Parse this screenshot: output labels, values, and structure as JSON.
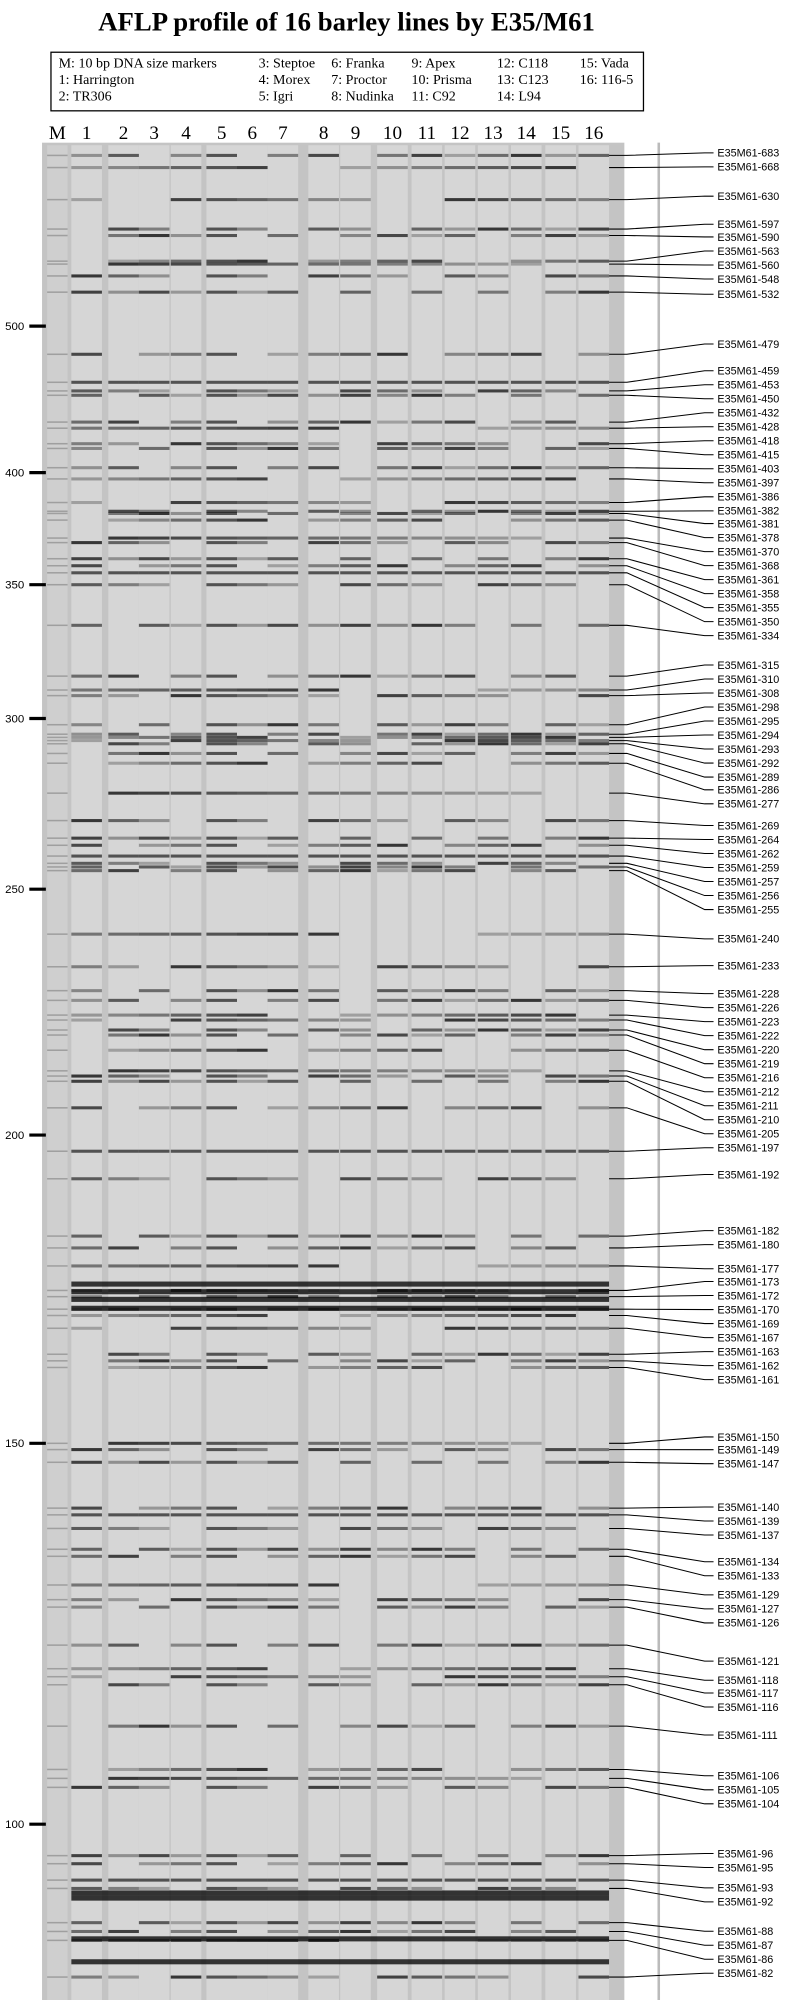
{
  "title": "AFLP profile of 16 barley lines by E35/M61",
  "legend": [
    [
      "M: 10 bp DNA size markers",
      "1: Harrington",
      "2: TR306"
    ],
    [
      "3: Steptoe",
      "4: Morex",
      "5: Igri"
    ],
    [
      "6: Franka",
      "7: Proctor",
      "8: Nudinka"
    ],
    [
      "9: Apex",
      "10: Prisma",
      "11: C92"
    ],
    [
      "12: C118",
      "13: C123",
      "14: L94"
    ],
    [
      "15: Vada",
      "16: 116-5"
    ]
  ],
  "lanes": [
    "M",
    "1",
    "2",
    "3",
    "4",
    "5",
    "6",
    "7",
    "8",
    "9",
    "10",
    "11",
    "12",
    "13",
    "14",
    "15",
    "16"
  ],
  "size_markers": [
    "500",
    "400",
    "350",
    "300",
    "250",
    "200",
    "150",
    "100"
  ],
  "band_labels": [
    "E35M61-683",
    "E35M61-668",
    "E35M61-630",
    "E35M61-597",
    "E35M61-590",
    "E35M61-563",
    "E35M61-560",
    "E35M61-548",
    "E35M61-532",
    "E35M61-479",
    "E35M61-459",
    "E35M61-453",
    "E35M61-450",
    "E35M61-432",
    "E35M61-428",
    "E35M61-418",
    "E35M61-415",
    "E35M61-403",
    "E35M61-397",
    "E35M61-386",
    "E35M61-382",
    "E35M61-381",
    "E35M61-378",
    "E35M61-370",
    "E35M61-368",
    "E35M61-361",
    "E35M61-358",
    "E35M61-355",
    "E35M61-350",
    "E35M61-334",
    "E35M61-315",
    "E35M61-310",
    "E35M61-308",
    "E35M61-298",
    "E35M61-295",
    "E35M61-294",
    "E35M61-293",
    "E35M61-292",
    "E35M61-289",
    "E35M61-286",
    "E35M61-277",
    "E35M61-269",
    "E35M61-264",
    "E35M61-262",
    "E35M61-259",
    "E35M61-257",
    "E35M61-256",
    "E35M61-255",
    "E35M61-240",
    "E35M61-233",
    "E35M61-228",
    "E35M61-226",
    "E35M61-223",
    "E35M61-222",
    "E35M61-220",
    "E35M61-219",
    "E35M61-216",
    "E35M61-212",
    "E35M61-211",
    "E35M61-210",
    "E35M61-205",
    "E35M61-197",
    "E35M61-192",
    "E35M61-182",
    "E35M61-180",
    "E35M61-177",
    "E35M61-173",
    "E35M61-172",
    "E35M61-170",
    "E35M61-169",
    "E35M61-167",
    "E35M61-163",
    "E35M61-162",
    "E35M61-161",
    "E35M61-150",
    "E35M61-149",
    "E35M61-147",
    "E35M61-140",
    "E35M61-139",
    "E35M61-137",
    "E35M61-134",
    "E35M61-133",
    "E35M61-129",
    "E35M61-127",
    "E35M61-126",
    "E35M61-121",
    "E35M61-118",
    "E35M61-117",
    "E35M61-116",
    "E35M61-111",
    "E35M61-106",
    "E35M61-105",
    "E35M61-104",
    "E35M61-96",
    "E35M61-95",
    "E35M61-93",
    "E35M61-92",
    "E35M61-88",
    "E35M61-87",
    "E35M61-86",
    "E35M61-82"
  ]
}
